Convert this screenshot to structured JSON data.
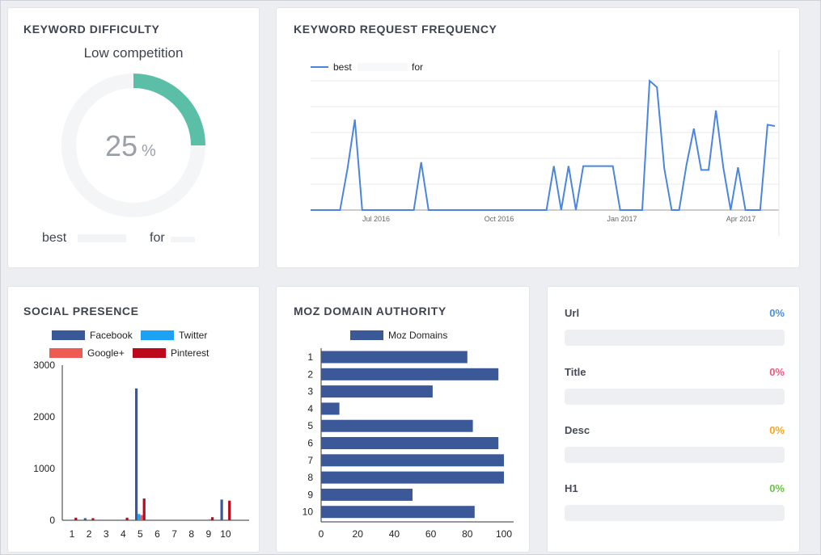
{
  "keyword_difficulty": {
    "title": "KEYWORD DIFFICULTY",
    "level": "Low competition",
    "percent_value": "25",
    "percent_sign": "%",
    "fraction": 0.25,
    "kw_word1": "best",
    "kw_word2": "for",
    "ring_color": "#5bbfa7",
    "track_color": "#f4f5f6"
  },
  "request_frequency": {
    "title": "KEYWORD REQUEST FREQUENCY",
    "chart_data": {
      "type": "line",
      "legend_word1": "best",
      "legend_word2": "for",
      "legend_position": "top-left",
      "color": "#4a86e0",
      "x_ticks": [
        "Jul 2016",
        "Oct 2016",
        "Jan 2017",
        "Apr 2017"
      ],
      "ylim": [
        0,
        100
      ],
      "grid": true,
      "values": [
        0,
        0,
        0,
        0,
        0,
        32,
        70,
        0,
        0,
        0,
        0,
        0,
        0,
        0,
        0,
        37,
        0,
        0,
        0,
        0,
        0,
        0,
        0,
        0,
        0,
        0,
        0,
        0,
        0,
        0,
        0,
        0,
        0,
        34,
        0,
        34,
        0,
        34,
        34,
        34,
        34,
        34,
        0,
        0,
        0,
        0,
        100,
        95,
        32,
        0,
        0,
        35,
        63,
        31,
        31,
        77,
        33,
        0,
        33,
        0,
        0,
        0,
        66,
        65
      ]
    }
  },
  "social_presence": {
    "title": "SOCIAL PRESENCE",
    "chart_data": {
      "type": "bar",
      "legend_position": "top",
      "categories": [
        "1",
        "2",
        "3",
        "4",
        "5",
        "6",
        "7",
        "8",
        "9",
        "10"
      ],
      "ylim": [
        0,
        3000
      ],
      "y_ticks": [
        "0",
        "1000",
        "2000",
        "3000"
      ],
      "series": [
        {
          "name": "Facebook",
          "color": "#3b5998",
          "values": [
            10,
            40,
            0,
            0,
            2550,
            0,
            0,
            0,
            0,
            400
          ]
        },
        {
          "name": "Twitter",
          "color": "#1da1f2",
          "values": [
            0,
            0,
            0,
            0,
            120,
            0,
            0,
            0,
            0,
            0
          ]
        },
        {
          "name": "Google+",
          "color": "#ef5a52",
          "values": [
            0,
            0,
            0,
            0,
            100,
            0,
            0,
            0,
            20,
            0
          ]
        },
        {
          "name": "Pinterest",
          "color": "#bd081c",
          "values": [
            50,
            40,
            0,
            50,
            420,
            0,
            0,
            0,
            60,
            380
          ]
        }
      ]
    }
  },
  "moz": {
    "title": "MOZ DOMAIN AUTHORITY",
    "chart_data": {
      "type": "bar",
      "orientation": "horizontal",
      "legend_position": "top",
      "series": [
        {
          "name": "Moz Domains",
          "color": "#3b5998"
        }
      ],
      "categories": [
        "1",
        "2",
        "3",
        "4",
        "5",
        "6",
        "7",
        "8",
        "9",
        "10"
      ],
      "values": [
        80,
        97,
        61,
        10,
        83,
        97,
        100,
        100,
        50,
        84
      ],
      "xlim": [
        0,
        100
      ],
      "x_ticks": [
        "0",
        "20",
        "40",
        "60",
        "80",
        "100"
      ]
    }
  },
  "seo_stats": [
    {
      "label": "Url",
      "percent": "0%",
      "value": 0,
      "color": "#4a8fe0"
    },
    {
      "label": "Title",
      "percent": "0%",
      "value": 0,
      "color": "#f0577f"
    },
    {
      "label": "Desc",
      "percent": "0%",
      "value": 0,
      "color": "#f5a623"
    },
    {
      "label": "H1",
      "percent": "0%",
      "value": 0,
      "color": "#6cc04a"
    }
  ]
}
